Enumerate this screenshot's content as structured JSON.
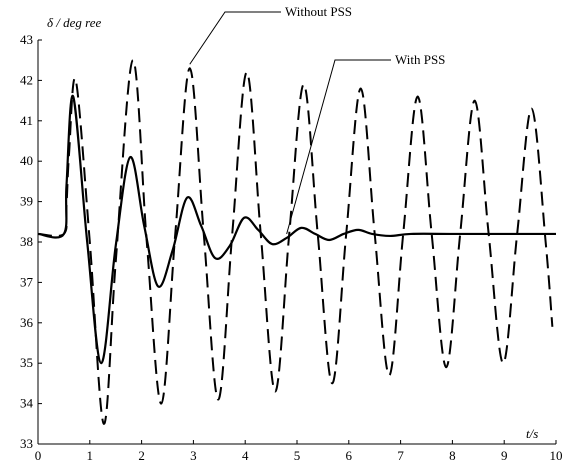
{
  "chart_data": {
    "type": "line",
    "title": "",
    "xlabel": "t/s",
    "ylabel": "δ / deg ree",
    "xlim": [
      0,
      10
    ],
    "ylim": [
      33,
      43
    ],
    "xticks": [
      "0",
      "1",
      "2",
      "3",
      "4",
      "5",
      "6",
      "7",
      "8",
      "9",
      "10"
    ],
    "yticks": [
      "33",
      "34",
      "35",
      "36",
      "37",
      "38",
      "39",
      "40",
      "41",
      "42",
      "43"
    ],
    "grid": false,
    "series": [
      {
        "name": "Without PSS",
        "style": "dashed",
        "color": "#000000",
        "x": [
          0,
          0.5,
          0.55,
          0.6,
          0.73,
          1.0,
          1.27,
          1.5,
          1.83,
          2.1,
          2.38,
          2.65,
          2.93,
          3.2,
          3.48,
          3.75,
          4.03,
          4.3,
          4.58,
          4.85,
          5.13,
          5.4,
          5.68,
          5.95,
          6.23,
          6.5,
          6.78,
          7.05,
          7.33,
          7.6,
          7.88,
          8.15,
          8.43,
          8.7,
          8.98,
          9.25,
          9.53,
          9.8,
          9.93
        ],
        "y": [
          38.2,
          38.2,
          38.9,
          40.2,
          42.0,
          38.0,
          33.5,
          37.5,
          42.5,
          38.0,
          34.0,
          38.2,
          42.3,
          38.2,
          34.1,
          38.2,
          42.2,
          38.2,
          34.3,
          38.2,
          41.9,
          38.2,
          34.5,
          38.2,
          41.8,
          38.2,
          34.7,
          38.2,
          41.6,
          38.2,
          34.9,
          38.2,
          41.5,
          38.2,
          35.0,
          38.2,
          41.3,
          38.0,
          35.9
        ]
      },
      {
        "name": "With PSS",
        "style": "solid",
        "color": "#000000",
        "x": [
          0,
          0.5,
          0.55,
          0.68,
          0.95,
          1.22,
          1.5,
          1.78,
          2.05,
          2.32,
          2.6,
          2.88,
          3.15,
          3.42,
          3.7,
          3.98,
          4.25,
          4.52,
          4.8,
          5.08,
          5.35,
          5.62,
          5.9,
          6.18,
          6.45,
          6.8,
          7.2,
          8.0,
          9.0,
          10.0
        ],
        "y": [
          38.2,
          38.2,
          39.4,
          41.6,
          38.0,
          35.0,
          37.9,
          40.1,
          38.4,
          36.9,
          37.8,
          39.1,
          38.4,
          37.6,
          37.9,
          38.6,
          38.3,
          37.95,
          38.1,
          38.35,
          38.2,
          38.05,
          38.2,
          38.3,
          38.2,
          38.15,
          38.2,
          38.2,
          38.2,
          38.2
        ]
      }
    ],
    "annotations": [
      {
        "text": "Without PSS",
        "target_series": 0,
        "target_x": 2.93,
        "target_y": 42.3
      },
      {
        "text": "With PSS",
        "target_series": 1,
        "target_x": 4.8,
        "target_y": 38.1
      }
    ]
  }
}
